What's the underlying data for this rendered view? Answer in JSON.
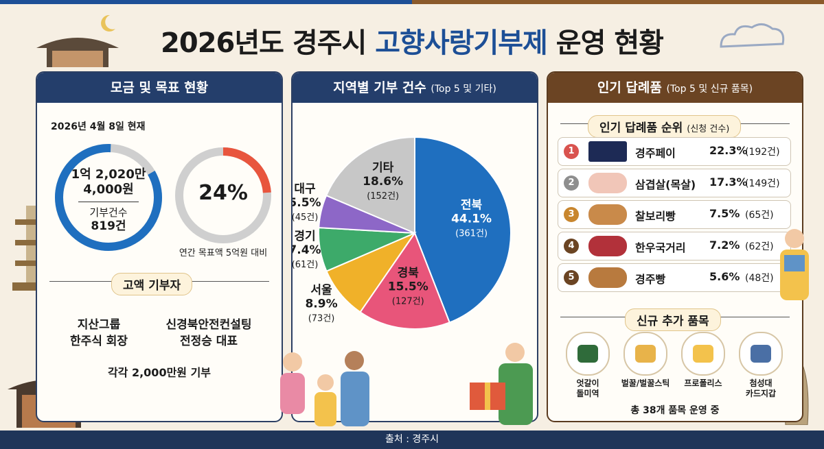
{
  "title": {
    "part1": "2026년도 경주시",
    "highlight": "고향사랑기부제",
    "part2": "운영 현황"
  },
  "panel1": {
    "header": "모금 및 목표 현황",
    "date": "2026년 4월 8일 현재",
    "amount_line1": "1억 2,020만",
    "amount_line2": "4,000원",
    "count_label": "기부건수",
    "count_value": "819건",
    "percent": "24%",
    "percent_value": 24,
    "target_caption": "연간 목표액 5억원 대비",
    "donors_title": "고액 기부자",
    "donor1_line1": "지산그룹",
    "donor1_line2": "한주식 회장",
    "donor2_line1": "신경북안전컨설팅",
    "donor2_line2": "전정승 대표",
    "donor_note": "각각 2,000만원 기부"
  },
  "panel2": {
    "header": "지역별 기부 건수",
    "header_sub": "(Top 5 및 기타)"
  },
  "panel3": {
    "header": "인기 답례품",
    "header_sub": "(Top 5 및 신규 품목)",
    "ranking_title": "인기 답례품 순위",
    "ranking_sub": "(신청 건수)",
    "ranking": [
      {
        "rank": "1",
        "name": "경주페이",
        "pct": "22.3%",
        "count": "(192건)",
        "color": "#d9534f",
        "icon": "card-icon"
      },
      {
        "rank": "2",
        "name": "삼겹살(목살)",
        "pct": "17.3%",
        "count": "(149건)",
        "color": "#8e8e8e",
        "icon": "meat-icon"
      },
      {
        "rank": "3",
        "name": "찰보리빵",
        "pct": "7.5%",
        "count": "(65건)",
        "color": "#c8862e",
        "icon": "bread-icon"
      },
      {
        "rank": "4",
        "name": "한우국거리",
        "pct": "7.2%",
        "count": "(62건)",
        "color": "#6b4423",
        "icon": "beef-icon"
      },
      {
        "rank": "5",
        "name": "경주빵",
        "pct": "5.6%",
        "count": "(48건)",
        "color": "#6b4423",
        "icon": "bun-icon"
      }
    ],
    "new_title": "신규 추가 품목",
    "new_items": [
      {
        "line1": "엇갈이",
        "line2": "돌미역",
        "icon": "seaweed-icon"
      },
      {
        "line1": "벌꿀/벌꿀스틱",
        "line2": "",
        "icon": "honey-icon"
      },
      {
        "line1": "프로폴리스",
        "line2": "",
        "icon": "propolis-icon"
      },
      {
        "line1": "첨성대",
        "line2": "카드지갑",
        "icon": "wallet-icon"
      }
    ],
    "total_note": "총 38개 품목 운영 중"
  },
  "footer": "출처 : 경주시",
  "chart_data": {
    "type": "pie",
    "title": "지역별 기부 건수 (Top 5 및 기타)",
    "slices": [
      {
        "name": "전북",
        "pct": 44.1,
        "pct_label": "44.1%",
        "count": 361,
        "count_label": "(361건)",
        "color": "#1f6fbf"
      },
      {
        "name": "경북",
        "pct": 15.5,
        "pct_label": "15.5%",
        "count": 127,
        "count_label": "(127건)",
        "color": "#e8557a"
      },
      {
        "name": "서울",
        "pct": 8.9,
        "pct_label": "8.9%",
        "count": 73,
        "count_label": "(73건)",
        "color": "#f0b129"
      },
      {
        "name": "경기",
        "pct": 7.4,
        "pct_label": "7.4%",
        "count": 61,
        "count_label": "(61건)",
        "color": "#3daa6a"
      },
      {
        "name": "대구",
        "pct": 5.5,
        "pct_label": "5.5%",
        "count": 45,
        "count_label": "(45건)",
        "color": "#8d67c7"
      },
      {
        "name": "기타",
        "pct": 18.6,
        "pct_label": "18.6%",
        "count": 152,
        "count_label": "(152건)",
        "color": "#c7c7c7"
      }
    ]
  }
}
